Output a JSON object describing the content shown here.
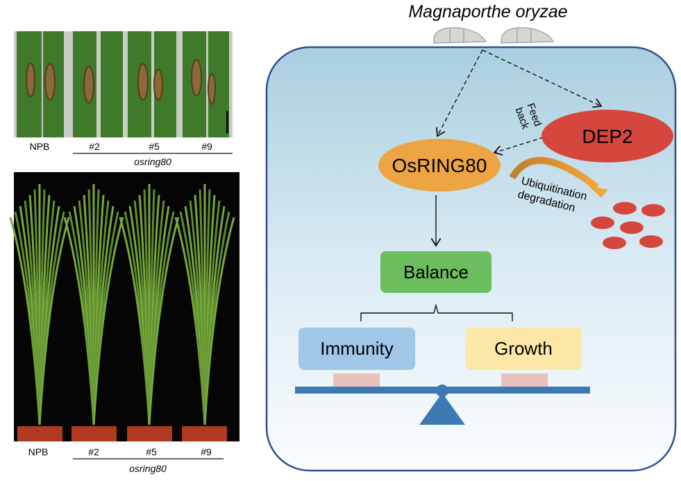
{
  "left_panel": {
    "leaf_photo": {
      "labels": [
        "NPB",
        "#2",
        "#5",
        "#9"
      ],
      "group_label": "osring80"
    },
    "plant_photo": {
      "labels": [
        "NPB",
        "#2",
        "#5",
        "#9"
      ],
      "group_label": "osring80"
    }
  },
  "model": {
    "pathogen": "Magnaporthe oryzae",
    "osring80": "OsRING80",
    "dep2": "DEP2",
    "feedback": [
      "Feed",
      "back"
    ],
    "ubiquitination": [
      "Ubiquitination",
      "degradation"
    ],
    "balance": "Balance",
    "immunity": "Immunity",
    "growth": "Growth",
    "colors": {
      "cell_border": "#2f4d8e",
      "osring80": "#eda443",
      "dep2": "#d5463c",
      "balance": "#6cbd5d",
      "immunity": "#a0c6e8",
      "growth": "#fde7a6",
      "scale": "#3d7ab3",
      "weight": "#e9c2bd"
    }
  }
}
